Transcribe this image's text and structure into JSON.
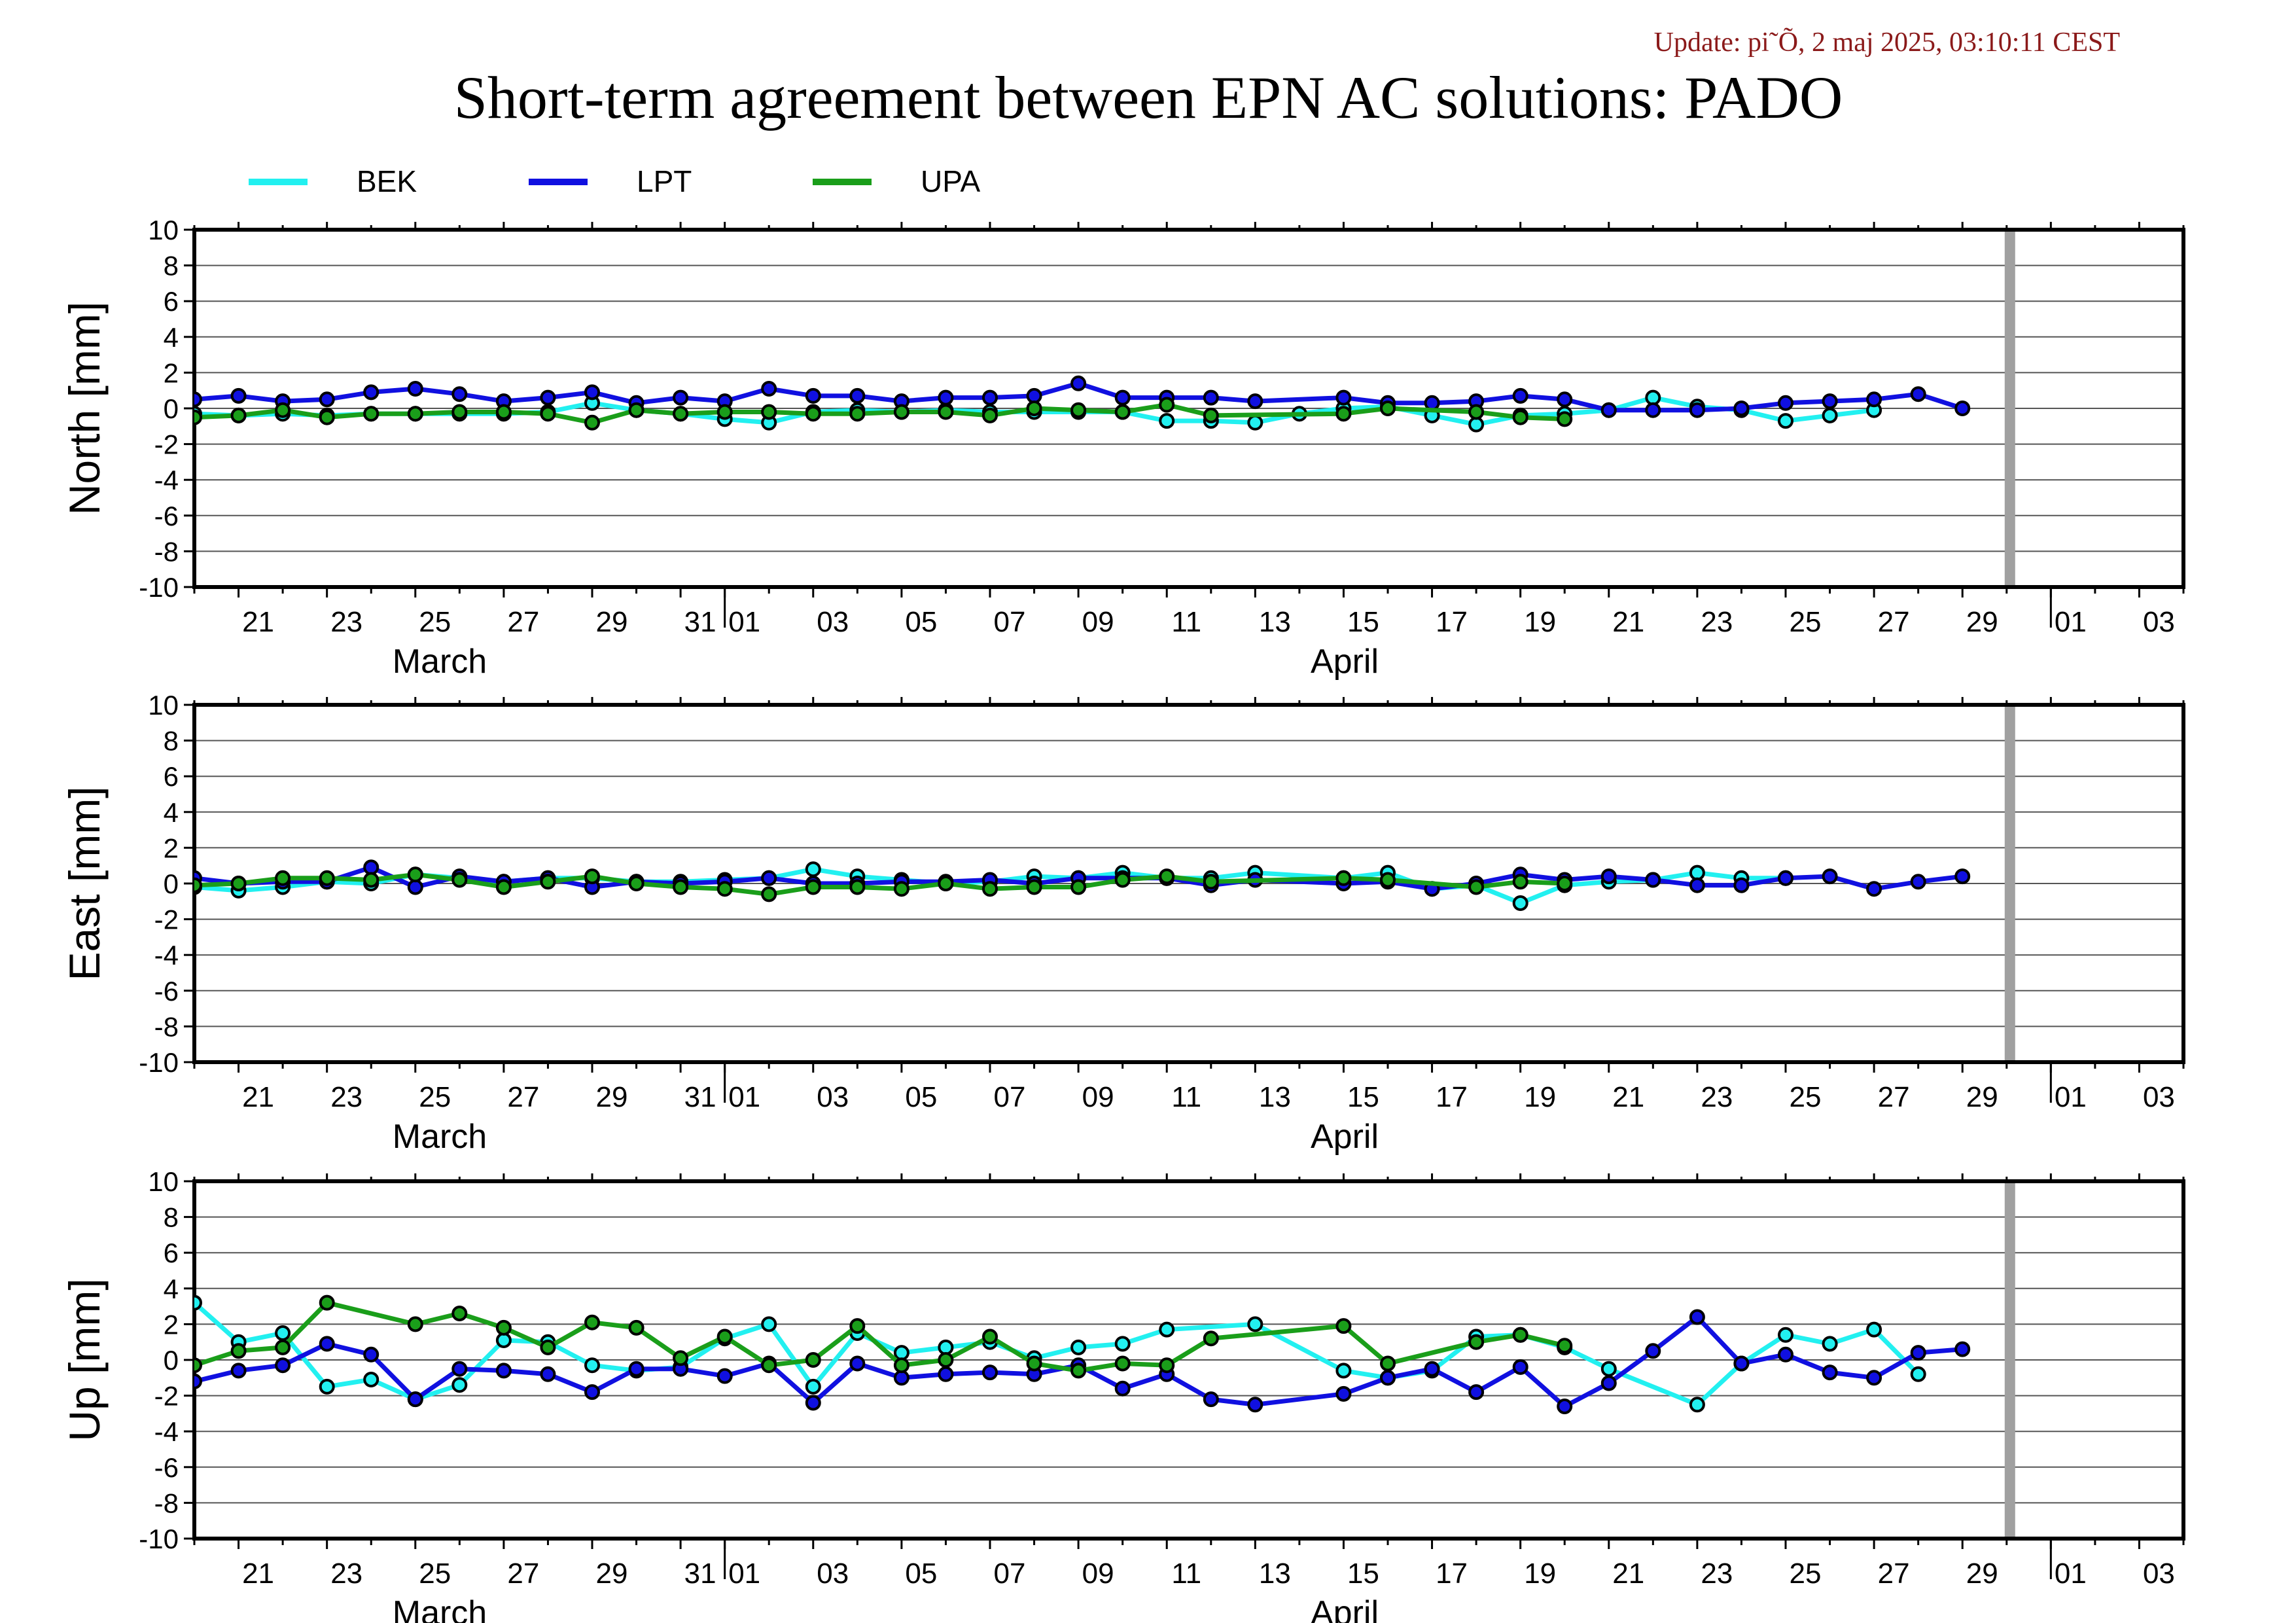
{
  "update_text": "Update: pi˜Õ, 2 maj 2025, 03:10:11 CEST",
  "title": "Short-term agreement between EPN AC solutions: PADO",
  "colors": {
    "BEK": "#22f0f0",
    "LPT": "#1010e0",
    "UPA": "#1a9e1a",
    "update_text": "#8b1a1a",
    "gap_bar": "#a0a0a0",
    "grid": "#555555"
  },
  "legend": [
    {
      "name": "BEK",
      "color": "#22f0f0"
    },
    {
      "name": "LPT",
      "color": "#1010e0"
    },
    {
      "name": "UPA",
      "color": "#1a9e1a"
    }
  ],
  "x_axis": {
    "month_labels": [
      "March",
      "April"
    ],
    "march_days": [
      "21",
      "23",
      "25",
      "27",
      "29",
      "31"
    ],
    "april_days": [
      "01",
      "03",
      "05",
      "07",
      "09",
      "11",
      "13",
      "15",
      "17",
      "19",
      "21",
      "23",
      "25",
      "27",
      "29"
    ],
    "may_days": [
      "01",
      "03"
    ]
  },
  "chart_data": [
    {
      "type": "line",
      "ylabel": "North [mm]",
      "ylim": [
        -10,
        10
      ],
      "yticks": [
        "10",
        "8",
        "6",
        "4",
        "2",
        "0",
        "-2",
        "-4",
        "-6",
        "-8",
        "-10"
      ],
      "grid": true,
      "xrange": [
        "2025-03-20",
        "2025-05-04"
      ],
      "gap_marker": "2025-04-30",
      "series": [
        {
          "name": "BEK",
          "x": [
            "2025-03-20",
            "2025-03-21",
            "2025-03-22",
            "2025-03-23",
            "2025-03-24",
            "2025-03-25",
            "2025-03-26",
            "2025-03-27",
            "2025-03-28",
            "2025-03-29",
            "2025-03-30",
            "2025-03-31",
            "2025-04-01",
            "2025-04-02",
            "2025-04-03",
            "2025-04-04",
            "2025-04-05",
            "2025-04-06",
            "2025-04-07",
            "2025-04-08",
            "2025-04-09",
            "2025-04-10",
            "2025-04-11",
            "2025-04-12",
            "2025-04-13",
            "2025-04-14",
            "2025-04-15",
            "2025-04-16",
            "2025-04-17",
            "2025-04-18",
            "2025-04-19",
            "2025-04-20",
            "2025-04-21",
            "2025-04-22",
            "2025-04-23",
            "2025-04-24",
            "2025-04-25",
            "2025-04-26",
            "2025-04-27",
            "2025-04-28",
            "2025-04-29"
          ],
          "values": [
            -0.3,
            -0.4,
            -0.3,
            -0.4,
            -0.3,
            -0.3,
            -0.3,
            -0.3,
            -0.2,
            0.3,
            -0.1,
            -0.3,
            -0.6,
            -0.8,
            -0.2,
            -0.1,
            -0.2,
            -0.1,
            -0.2,
            -0.2,
            -0.2,
            -0.2,
            -0.7,
            -0.7,
            -0.8,
            -0.3,
            0.0,
            0.1,
            -0.4,
            -0.9,
            -0.4,
            -0.3,
            -0.1,
            0.6,
            0.1,
            -0.1,
            -0.7,
            -0.4,
            -0.1,
            null,
            null
          ]
        },
        {
          "name": "LPT",
          "x": [
            "2025-03-20",
            "2025-03-21",
            "2025-03-22",
            "2025-03-23",
            "2025-03-24",
            "2025-03-25",
            "2025-03-26",
            "2025-03-27",
            "2025-03-28",
            "2025-03-29",
            "2025-03-30",
            "2025-03-31",
            "2025-04-01",
            "2025-04-02",
            "2025-04-03",
            "2025-04-04",
            "2025-04-05",
            "2025-04-06",
            "2025-04-07",
            "2025-04-08",
            "2025-04-09",
            "2025-04-10",
            "2025-04-11",
            "2025-04-12",
            "2025-04-13",
            "2025-04-15",
            "2025-04-16",
            "2025-04-17",
            "2025-04-18",
            "2025-04-19",
            "2025-04-20",
            "2025-04-21",
            "2025-04-22",
            "2025-04-23",
            "2025-04-24",
            "2025-04-25",
            "2025-04-26",
            "2025-04-27",
            "2025-04-28",
            "2025-04-29"
          ],
          "values": [
            0.5,
            0.7,
            0.4,
            0.5,
            0.9,
            1.1,
            0.8,
            0.4,
            0.6,
            0.9,
            0.3,
            0.6,
            0.4,
            1.1,
            0.7,
            0.7,
            0.4,
            0.6,
            0.6,
            0.7,
            1.4,
            0.6,
            0.6,
            0.6,
            0.4,
            0.6,
            0.3,
            0.3,
            0.4,
            0.7,
            0.5,
            -0.1,
            -0.1,
            -0.1,
            0.0,
            0.3,
            0.4,
            0.5,
            0.8,
            0.0
          ]
        },
        {
          "name": "UPA",
          "x": [
            "2025-03-20",
            "2025-03-21",
            "2025-03-22",
            "2025-03-23",
            "2025-03-24",
            "2025-03-25",
            "2025-03-26",
            "2025-03-27",
            "2025-03-28",
            "2025-03-29",
            "2025-03-30",
            "2025-03-31",
            "2025-04-01",
            "2025-04-02",
            "2025-04-03",
            "2025-04-04",
            "2025-04-05",
            "2025-04-06",
            "2025-04-07",
            "2025-04-08",
            "2025-04-09",
            "2025-04-10",
            "2025-04-11",
            "2025-04-12",
            "2025-04-15",
            "2025-04-16",
            "2025-04-18",
            "2025-04-19",
            "2025-04-20"
          ],
          "values": [
            -0.5,
            -0.4,
            -0.1,
            -0.5,
            -0.3,
            -0.3,
            -0.2,
            -0.2,
            -0.3,
            -0.8,
            -0.1,
            -0.3,
            -0.2,
            -0.2,
            -0.3,
            -0.3,
            -0.2,
            -0.2,
            -0.4,
            0.0,
            -0.1,
            -0.2,
            0.2,
            -0.4,
            -0.3,
            0.0,
            -0.2,
            -0.5,
            -0.6
          ]
        }
      ]
    },
    {
      "type": "line",
      "ylabel": "East [mm]",
      "ylim": [
        -10,
        10
      ],
      "yticks": [
        "10",
        "8",
        "6",
        "4",
        "2",
        "0",
        "-2",
        "-4",
        "-6",
        "-8",
        "-10"
      ],
      "grid": true,
      "xrange": [
        "2025-03-20",
        "2025-05-04"
      ],
      "gap_marker": "2025-04-30",
      "series": [
        {
          "name": "BEK",
          "x": [
            "2025-03-20",
            "2025-03-21",
            "2025-03-22",
            "2025-03-23",
            "2025-03-24",
            "2025-03-25",
            "2025-03-26",
            "2025-03-27",
            "2025-03-28",
            "2025-03-29",
            "2025-03-30",
            "2025-03-31",
            "2025-04-01",
            "2025-04-02",
            "2025-04-03",
            "2025-04-04",
            "2025-04-05",
            "2025-04-06",
            "2025-04-07",
            "2025-04-08",
            "2025-04-09",
            "2025-04-10",
            "2025-04-11",
            "2025-04-12",
            "2025-04-13",
            "2025-04-15",
            "2025-04-16",
            "2025-04-17",
            "2025-04-18",
            "2025-04-19",
            "2025-04-20",
            "2025-04-21",
            "2025-04-22",
            "2025-04-23",
            "2025-04-24",
            "2025-04-25"
          ],
          "values": [
            -0.2,
            -0.4,
            -0.2,
            0.1,
            0.0,
            0.5,
            0.3,
            0.1,
            0.3,
            0.3,
            0.1,
            0.1,
            0.2,
            0.3,
            0.8,
            0.4,
            0.2,
            0.0,
            0.1,
            0.4,
            0.3,
            0.6,
            0.3,
            0.3,
            0.6,
            0.3,
            0.6,
            -0.3,
            -0.1,
            -1.1,
            -0.1,
            0.1,
            0.2,
            0.6,
            0.3,
            0.3
          ]
        },
        {
          "name": "LPT",
          "x": [
            "2025-03-20",
            "2025-03-21",
            "2025-03-22",
            "2025-03-23",
            "2025-03-24",
            "2025-03-25",
            "2025-03-26",
            "2025-03-27",
            "2025-03-28",
            "2025-03-29",
            "2025-03-30",
            "2025-03-31",
            "2025-04-01",
            "2025-04-02",
            "2025-04-03",
            "2025-04-04",
            "2025-04-05",
            "2025-04-06",
            "2025-04-07",
            "2025-04-08",
            "2025-04-09",
            "2025-04-10",
            "2025-04-11",
            "2025-04-12",
            "2025-04-13",
            "2025-04-15",
            "2025-04-16",
            "2025-04-17",
            "2025-04-18",
            "2025-04-19",
            "2025-04-20",
            "2025-04-21",
            "2025-04-22",
            "2025-04-23",
            "2025-04-24",
            "2025-04-25",
            "2025-04-26",
            "2025-04-27",
            "2025-04-28",
            "2025-04-29"
          ],
          "values": [
            0.3,
            0.0,
            0.1,
            0.1,
            0.9,
            -0.2,
            0.4,
            0.1,
            0.3,
            -0.2,
            0.1,
            0.0,
            0.1,
            0.3,
            0.0,
            0.0,
            0.1,
            0.1,
            0.2,
            0.0,
            0.3,
            0.3,
            0.3,
            -0.1,
            0.2,
            0.0,
            0.1,
            -0.3,
            0.0,
            0.5,
            0.2,
            0.4,
            0.2,
            -0.1,
            -0.1,
            0.3,
            0.4,
            -0.3,
            0.1,
            0.4
          ]
        },
        {
          "name": "UPA",
          "x": [
            "2025-03-20",
            "2025-03-21",
            "2025-03-22",
            "2025-03-23",
            "2025-03-24",
            "2025-03-25",
            "2025-03-26",
            "2025-03-27",
            "2025-03-28",
            "2025-03-29",
            "2025-03-30",
            "2025-03-31",
            "2025-04-01",
            "2025-04-02",
            "2025-04-03",
            "2025-04-04",
            "2025-04-05",
            "2025-04-06",
            "2025-04-07",
            "2025-04-08",
            "2025-04-09",
            "2025-04-10",
            "2025-04-11",
            "2025-04-12",
            "2025-04-15",
            "2025-04-16",
            "2025-04-18",
            "2025-04-19",
            "2025-04-20"
          ],
          "values": [
            -0.1,
            0.0,
            0.3,
            0.3,
            0.2,
            0.5,
            0.2,
            -0.2,
            0.1,
            0.4,
            0.0,
            -0.2,
            -0.3,
            -0.6,
            -0.2,
            -0.2,
            -0.3,
            0.0,
            -0.3,
            -0.2,
            -0.2,
            0.2,
            0.4,
            0.1,
            0.3,
            0.2,
            -0.2,
            0.1,
            0.0
          ]
        }
      ]
    },
    {
      "type": "line",
      "ylabel": "Up [mm]",
      "ylim": [
        -10,
        10
      ],
      "yticks": [
        "10",
        "8",
        "6",
        "4",
        "2",
        "0",
        "-2",
        "-4",
        "-6",
        "-8",
        "-10"
      ],
      "grid": true,
      "xrange": [
        "2025-03-20",
        "2025-05-04"
      ],
      "gap_marker": "2025-04-30",
      "series": [
        {
          "name": "BEK",
          "x": [
            "2025-03-20",
            "2025-03-21",
            "2025-03-22",
            "2025-03-23",
            "2025-03-24",
            "2025-03-25",
            "2025-03-26",
            "2025-03-27",
            "2025-03-28",
            "2025-03-29",
            "2025-03-30",
            "2025-03-31",
            "2025-04-01",
            "2025-04-02",
            "2025-04-03",
            "2025-04-04",
            "2025-04-05",
            "2025-04-06",
            "2025-04-07",
            "2025-04-08",
            "2025-04-09",
            "2025-04-10",
            "2025-04-11",
            "2025-04-13",
            "2025-04-15",
            "2025-04-16",
            "2025-04-17",
            "2025-04-18",
            "2025-04-19",
            "2025-04-20",
            "2025-04-21",
            "2025-04-23",
            "2025-04-24",
            "2025-04-25",
            "2025-04-26",
            "2025-04-27",
            "2025-04-28"
          ],
          "values": [
            3.2,
            1.0,
            1.5,
            -1.5,
            -1.1,
            -2.2,
            -1.4,
            1.1,
            1.0,
            -0.3,
            -0.6,
            -0.4,
            1.2,
            2.0,
            -1.5,
            1.5,
            0.4,
            0.7,
            1.0,
            0.1,
            0.7,
            0.9,
            1.7,
            2.0,
            -0.6,
            -1.0,
            -0.6,
            1.3,
            1.4,
            0.7,
            -0.5,
            -2.5,
            -0.2,
            1.4,
            0.9,
            1.7,
            -0.8
          ]
        },
        {
          "name": "LPT",
          "x": [
            "2025-03-20",
            "2025-03-21",
            "2025-03-22",
            "2025-03-23",
            "2025-03-24",
            "2025-03-25",
            "2025-03-26",
            "2025-03-27",
            "2025-03-28",
            "2025-03-29",
            "2025-03-30",
            "2025-03-31",
            "2025-04-01",
            "2025-04-02",
            "2025-04-03",
            "2025-04-04",
            "2025-04-05",
            "2025-04-06",
            "2025-04-07",
            "2025-04-08",
            "2025-04-09",
            "2025-04-10",
            "2025-04-11",
            "2025-04-12",
            "2025-04-13",
            "2025-04-15",
            "2025-04-16",
            "2025-04-17",
            "2025-04-18",
            "2025-04-19",
            "2025-04-20",
            "2025-04-21",
            "2025-04-22",
            "2025-04-23",
            "2025-04-24",
            "2025-04-25",
            "2025-04-26",
            "2025-04-27",
            "2025-04-28",
            "2025-04-29"
          ],
          "values": [
            -1.2,
            -0.6,
            -0.3,
            0.9,
            0.3,
            -2.2,
            -0.5,
            -0.6,
            -0.8,
            -1.8,
            -0.5,
            -0.5,
            -0.9,
            -0.2,
            -2.4,
            -0.2,
            -1.0,
            -0.8,
            -0.7,
            -0.8,
            -0.3,
            -1.6,
            -0.8,
            -2.2,
            -2.5,
            -1.9,
            -1.0,
            -0.5,
            -1.8,
            -0.4,
            -2.6,
            -1.3,
            0.5,
            2.4,
            -0.2,
            0.3,
            -0.7,
            -1.0,
            0.4,
            0.6
          ]
        },
        {
          "name": "UPA",
          "x": [
            "2025-03-20",
            "2025-03-21",
            "2025-03-22",
            "2025-03-23",
            "2025-03-25",
            "2025-03-26",
            "2025-03-27",
            "2025-03-28",
            "2025-03-29",
            "2025-03-30",
            "2025-03-31",
            "2025-04-01",
            "2025-04-02",
            "2025-04-03",
            "2025-04-04",
            "2025-04-05",
            "2025-04-06",
            "2025-04-07",
            "2025-04-08",
            "2025-04-09",
            "2025-04-10",
            "2025-04-11",
            "2025-04-12",
            "2025-04-15",
            "2025-04-16",
            "2025-04-18",
            "2025-04-19",
            "2025-04-20"
          ],
          "values": [
            -0.3,
            0.5,
            0.7,
            3.2,
            2.0,
            2.6,
            1.8,
            0.7,
            2.1,
            1.8,
            0.1,
            1.3,
            -0.3,
            0.0,
            1.9,
            -0.3,
            0.0,
            1.3,
            -0.2,
            -0.6,
            -0.2,
            -0.3,
            1.2,
            1.9,
            -0.2,
            1.0,
            1.4,
            0.8
          ]
        }
      ]
    }
  ]
}
